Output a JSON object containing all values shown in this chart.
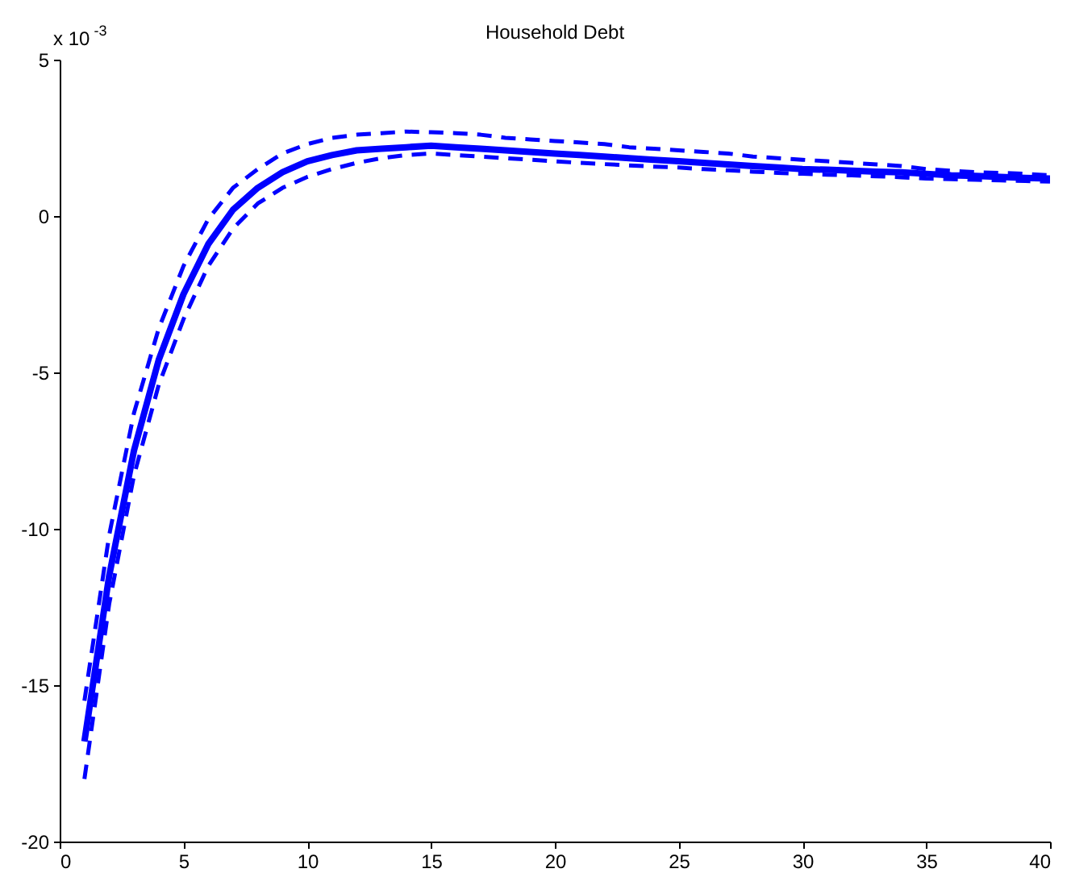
{
  "chart_data": {
    "type": "line",
    "title": "Household Debt",
    "annotations": [
      "x 10$^{-3}$"
    ],
    "x": [
      1,
      2,
      3,
      4,
      5,
      6,
      7,
      8,
      9,
      10,
      11,
      12,
      13,
      14,
      15,
      16,
      17,
      18,
      19,
      20,
      21,
      22,
      23,
      24,
      25,
      26,
      27,
      28,
      29,
      30,
      31,
      32,
      33,
      34,
      35,
      36,
      37,
      38,
      39,
      40
    ],
    "series": [
      {
        "color": "#0000ff",
        "line_style": "solid",
        "values": [
          -16.8,
          -11.5,
          -7.5,
          -4.6,
          -2.5,
          -0.9,
          0.2,
          0.9,
          1.4,
          1.75,
          1.95,
          2.1,
          2.15,
          2.2,
          2.25,
          2.2,
          2.15,
          2.1,
          2.05,
          2.0,
          1.95,
          1.9,
          1.85,
          1.8,
          1.75,
          1.7,
          1.65,
          1.6,
          1.55,
          1.5,
          1.48,
          1.45,
          1.42,
          1.4,
          1.35,
          1.3,
          1.28,
          1.25,
          1.22,
          1.2
        ]
      },
      {
        "color": "#0000ff",
        "line_style": "dashed",
        "values": [
          -15.5,
          -10.2,
          -6.3,
          -3.6,
          -1.6,
          -0.1,
          0.9,
          1.5,
          2.0,
          2.3,
          2.5,
          2.6,
          2.65,
          2.7,
          2.68,
          2.65,
          2.6,
          2.5,
          2.45,
          2.4,
          2.35,
          2.3,
          2.2,
          2.15,
          2.1,
          2.05,
          2.0,
          1.9,
          1.85,
          1.8,
          1.75,
          1.7,
          1.65,
          1.6,
          1.5,
          1.45,
          1.4,
          1.38,
          1.35,
          1.3
        ]
      },
      {
        "color": "#0000ff",
        "line_style": "dashed",
        "values": [
          -18,
          -12.4,
          -8.3,
          -5.4,
          -3.3,
          -1.6,
          -0.4,
          0.4,
          0.9,
          1.25,
          1.5,
          1.7,
          1.85,
          1.95,
          2.0,
          1.95,
          1.9,
          1.85,
          1.8,
          1.75,
          1.7,
          1.66,
          1.62,
          1.58,
          1.55,
          1.5,
          1.46,
          1.42,
          1.38,
          1.35,
          1.32,
          1.3,
          1.27,
          1.24,
          1.2,
          1.18,
          1.16,
          1.14,
          1.12,
          1.1
        ]
      }
    ],
    "xlim": [
      0,
      40
    ],
    "xticks": [
      0,
      5,
      10,
      15,
      20,
      25,
      30,
      35,
      40
    ],
    "ylim": [
      -20,
      5
    ],
    "yticks": [
      -20,
      -15,
      -10,
      -5,
      0,
      5
    ],
    "marker": "none"
  }
}
